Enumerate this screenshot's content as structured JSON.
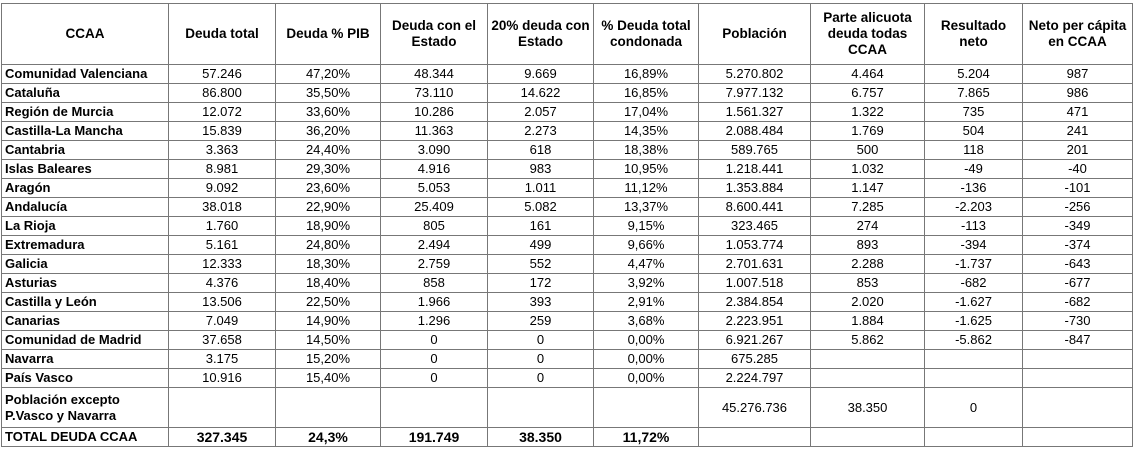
{
  "table": {
    "header": [
      "CCAA",
      "Deuda total",
      "Deuda % PIB",
      "Deuda con el Estado",
      "20% deuda con Estado",
      "% Deuda total condonada",
      "Población",
      "Parte alicuota deuda todas CCAA",
      "Resultado neto",
      "Neto per cápita en CCAA"
    ],
    "rows": [
      [
        "Comunidad Valenciana",
        "57.246",
        "47,20%",
        "48.344",
        "9.669",
        "16,89%",
        "5.270.802",
        "4.464",
        "5.204",
        "987"
      ],
      [
        "Cataluña",
        "86.800",
        "35,50%",
        "73.110",
        "14.622",
        "16,85%",
        "7.977.132",
        "6.757",
        "7.865",
        "986"
      ],
      [
        "Región de Murcia",
        "12.072",
        "33,60%",
        "10.286",
        "2.057",
        "17,04%",
        "1.561.327",
        "1.322",
        "735",
        "471"
      ],
      [
        "Castilla-La Mancha",
        "15.839",
        "36,20%",
        "11.363",
        "2.273",
        "14,35%",
        "2.088.484",
        "1.769",
        "504",
        "241"
      ],
      [
        "Cantabria",
        "3.363",
        "24,40%",
        "3.090",
        "618",
        "18,38%",
        "589.765",
        "500",
        "118",
        "201"
      ],
      [
        "Islas Baleares",
        "8.981",
        "29,30%",
        "4.916",
        "983",
        "10,95%",
        "1.218.441",
        "1.032",
        "-49",
        "-40"
      ],
      [
        "Aragón",
        "9.092",
        "23,60%",
        "5.053",
        "1.011",
        "11,12%",
        "1.353.884",
        "1.147",
        "-136",
        "-101"
      ],
      [
        "Andalucía",
        "38.018",
        "22,90%",
        "25.409",
        "5.082",
        "13,37%",
        "8.600.441",
        "7.285",
        "-2.203",
        "-256"
      ],
      [
        "La Rioja",
        "1.760",
        "18,90%",
        "805",
        "161",
        "9,15%",
        "323.465",
        "274",
        "-113",
        "-349"
      ],
      [
        "Extremadura",
        "5.161",
        "24,80%",
        "2.494",
        "499",
        "9,66%",
        "1.053.774",
        "893",
        "-394",
        "-374"
      ],
      [
        "Galicia",
        "12.333",
        "18,30%",
        "2.759",
        "552",
        "4,47%",
        "2.701.631",
        "2.288",
        "-1.737",
        "-643"
      ],
      [
        "Asturias",
        "4.376",
        "18,40%",
        "858",
        "172",
        "3,92%",
        "1.007.518",
        "853",
        "-682",
        "-677"
      ],
      [
        "Castilla y León",
        "13.506",
        "22,50%",
        "1.966",
        "393",
        "2,91%",
        "2.384.854",
        "2.020",
        "-1.627",
        "-682"
      ],
      [
        "Canarias",
        "7.049",
        "14,90%",
        "1.296",
        "259",
        "3,68%",
        "2.223.951",
        "1.884",
        "-1.625",
        "-730"
      ],
      [
        "Comunidad de Madrid",
        "37.658",
        "14,50%",
        "0",
        "0",
        "0,00%",
        "6.921.267",
        "5.862",
        "-5.862",
        "-847"
      ],
      [
        "Navarra",
        "3.175",
        "15,20%",
        "0",
        "0",
        "0,00%",
        "675.285",
        null,
        null,
        null
      ],
      [
        "País Vasco",
        "10.916",
        "15,40%",
        "0",
        "0",
        "0,00%",
        "2.224.797",
        null,
        null,
        null
      ],
      [
        "Población excepto P.Vasco y Navarra",
        null,
        null,
        null,
        null,
        null,
        "45.276.736",
        "38.350",
        "0",
        null
      ],
      [
        "TOTAL DEUDA CCAA",
        "327.345",
        "24,3%",
        "191.749",
        "38.350",
        "11,72%",
        null,
        null,
        null,
        null
      ]
    ]
  }
}
